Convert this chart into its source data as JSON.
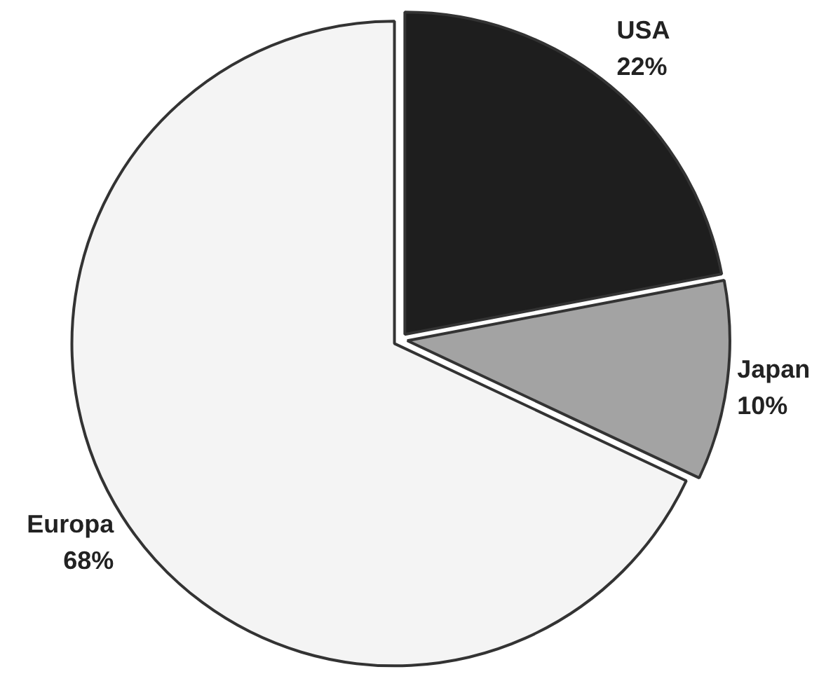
{
  "chart_data": {
    "type": "pie",
    "categories": [
      "USA",
      "Japan",
      "Europa"
    ],
    "values": [
      22,
      10,
      68
    ],
    "colors": [
      "#1e1e1e",
      "#a3a3a3",
      "#f4f4f4"
    ],
    "value_labels": [
      "22%",
      "10%",
      "68%"
    ]
  }
}
